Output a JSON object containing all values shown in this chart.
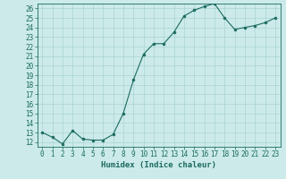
{
  "x": [
    0,
    1,
    2,
    3,
    4,
    5,
    6,
    7,
    8,
    9,
    10,
    11,
    12,
    13,
    14,
    15,
    16,
    17,
    18,
    19,
    20,
    21,
    22,
    23
  ],
  "y": [
    13.0,
    12.5,
    11.8,
    13.2,
    12.3,
    12.2,
    12.2,
    12.8,
    15.0,
    18.5,
    21.2,
    22.3,
    22.3,
    23.5,
    25.2,
    25.8,
    26.2,
    26.5,
    25.0,
    23.8,
    24.0,
    24.2,
    24.5,
    25.0
  ],
  "xlabel": "Humidex (Indice chaleur)",
  "line_color": "#1a6b5e",
  "marker": "o",
  "marker_size": 2,
  "bg_color": "#cceaea",
  "grid_color": "#aad4d4",
  "tick_color": "#1a6b5e",
  "label_color": "#1a6b5e",
  "ylim": [
    11.5,
    26.5
  ],
  "xlim": [
    -0.5,
    23.5
  ],
  "yticks": [
    12,
    13,
    14,
    15,
    16,
    17,
    18,
    19,
    20,
    21,
    22,
    23,
    24,
    25,
    26
  ],
  "xticks": [
    0,
    1,
    2,
    3,
    4,
    5,
    6,
    7,
    8,
    9,
    10,
    11,
    12,
    13,
    14,
    15,
    16,
    17,
    18,
    19,
    20,
    21,
    22,
    23
  ],
  "xlabel_fontsize": 6.5,
  "tick_fontsize": 5.5,
  "linewidth": 0.8
}
